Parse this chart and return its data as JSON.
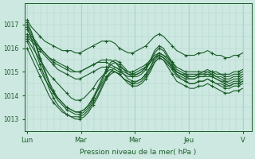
{
  "bg_color": "#cce8e0",
  "plot_bg_color": "#cce8e0",
  "line_color": "#1a5c28",
  "marker": "+",
  "xlabel": "Pression niveau de la mer( hPa )",
  "day_labels": [
    "Lun",
    "Mar",
    "Mer",
    "Jeu",
    "V"
  ],
  "day_positions": [
    0,
    24,
    48,
    72,
    96
  ],
  "ylim": [
    1012.5,
    1017.9
  ],
  "yticks": [
    1013,
    1014,
    1015,
    1016,
    1017
  ],
  "xlim": [
    -1,
    100
  ],
  "grid_color": "#b0d4cc",
  "series": [
    [
      1017.2,
      1016.9,
      1016.7,
      1016.5,
      1016.3,
      1016.2,
      1016.1,
      1016.0,
      1015.9,
      1015.9,
      1015.9,
      1015.8,
      1015.8,
      1015.9,
      1016.0,
      1016.1,
      1016.2,
      1016.3,
      1016.3,
      1016.3,
      1016.2,
      1016.0,
      1015.9,
      1015.8,
      1015.8,
      1015.9,
      1016.0,
      1016.1,
      1016.3,
      1016.5,
      1016.6,
      1016.5,
      1016.3,
      1016.1,
      1015.9,
      1015.8,
      1015.7,
      1015.7,
      1015.7,
      1015.8,
      1015.8,
      1015.9,
      1015.8,
      1015.7,
      1015.7,
      1015.6,
      1015.6,
      1015.7,
      1015.7,
      1015.8
    ],
    [
      1016.8,
      1016.5,
      1016.3,
      1016.0,
      1015.8,
      1015.6,
      1015.5,
      1015.4,
      1015.3,
      1015.2,
      1015.1,
      1015.0,
      1015.0,
      1015.1,
      1015.2,
      1015.3,
      1015.4,
      1015.5,
      1015.5,
      1015.5,
      1015.4,
      1015.2,
      1015.1,
      1015.0,
      1015.0,
      1015.1,
      1015.2,
      1015.3,
      1015.5,
      1015.7,
      1015.8,
      1015.7,
      1015.6,
      1015.4,
      1015.2,
      1015.1,
      1015.0,
      1015.0,
      1015.0,
      1015.0,
      1015.0,
      1015.1,
      1015.0,
      1015.0,
      1014.9,
      1014.9,
      1014.9,
      1015.0,
      1015.0,
      1015.1
    ],
    [
      1016.6,
      1016.4,
      1016.2,
      1016.0,
      1015.8,
      1015.6,
      1015.4,
      1015.3,
      1015.2,
      1015.1,
      1015.0,
      1015.0,
      1015.0,
      1015.1,
      1015.2,
      1015.3,
      1015.4,
      1015.4,
      1015.4,
      1015.3,
      1015.2,
      1015.1,
      1015.0,
      1014.9,
      1014.9,
      1015.0,
      1015.1,
      1015.2,
      1015.4,
      1015.6,
      1015.7,
      1015.6,
      1015.4,
      1015.2,
      1015.0,
      1014.9,
      1014.9,
      1014.9,
      1014.9,
      1014.9,
      1015.0,
      1015.0,
      1015.0,
      1014.9,
      1014.9,
      1014.8,
      1014.8,
      1014.9,
      1014.9,
      1015.0
    ],
    [
      1016.5,
      1016.3,
      1016.1,
      1015.9,
      1015.7,
      1015.5,
      1015.3,
      1015.1,
      1015.0,
      1014.9,
      1014.8,
      1014.7,
      1014.7,
      1014.8,
      1014.9,
      1015.0,
      1015.1,
      1015.2,
      1015.2,
      1015.2,
      1015.1,
      1015.0,
      1014.9,
      1014.8,
      1014.8,
      1014.9,
      1015.0,
      1015.2,
      1015.4,
      1015.6,
      1015.7,
      1015.6,
      1015.4,
      1015.2,
      1015.0,
      1014.9,
      1014.8,
      1014.8,
      1014.8,
      1014.9,
      1014.9,
      1014.9,
      1014.9,
      1014.8,
      1014.8,
      1014.7,
      1014.7,
      1014.8,
      1014.8,
      1014.9
    ],
    [
      1016.4,
      1016.1,
      1015.8,
      1015.5,
      1015.2,
      1014.9,
      1014.7,
      1014.5,
      1014.3,
      1014.1,
      1013.9,
      1013.8,
      1013.8,
      1013.9,
      1014.1,
      1014.3,
      1014.6,
      1014.8,
      1015.0,
      1015.1,
      1015.0,
      1014.9,
      1014.7,
      1014.6,
      1014.5,
      1014.6,
      1014.7,
      1014.9,
      1015.2,
      1015.5,
      1015.7,
      1015.6,
      1015.4,
      1015.2,
      1014.9,
      1014.8,
      1014.7,
      1014.7,
      1014.7,
      1014.8,
      1014.8,
      1014.8,
      1014.8,
      1014.7,
      1014.6,
      1014.6,
      1014.6,
      1014.7,
      1014.7,
      1014.8
    ],
    [
      1016.3,
      1015.9,
      1015.5,
      1015.1,
      1014.7,
      1014.4,
      1014.1,
      1013.9,
      1013.7,
      1013.5,
      1013.4,
      1013.3,
      1013.3,
      1013.4,
      1013.6,
      1013.9,
      1014.2,
      1014.5,
      1014.8,
      1015.0,
      1015.0,
      1014.9,
      1014.7,
      1014.6,
      1014.5,
      1014.5,
      1014.6,
      1014.8,
      1015.1,
      1015.4,
      1015.6,
      1015.5,
      1015.3,
      1015.1,
      1014.8,
      1014.7,
      1014.6,
      1014.5,
      1014.5,
      1014.6,
      1014.6,
      1014.7,
      1014.6,
      1014.5,
      1014.5,
      1014.4,
      1014.4,
      1014.5,
      1014.5,
      1014.6
    ],
    [
      1017.1,
      1016.7,
      1016.2,
      1015.6,
      1015.1,
      1014.6,
      1014.2,
      1013.9,
      1013.7,
      1013.5,
      1013.4,
      1013.3,
      1013.3,
      1013.4,
      1013.6,
      1013.9,
      1014.3,
      1014.7,
      1015.1,
      1015.4,
      1015.5,
      1015.4,
      1015.2,
      1015.0,
      1014.9,
      1014.9,
      1015.0,
      1015.2,
      1015.5,
      1015.9,
      1016.1,
      1016.0,
      1015.7,
      1015.4,
      1015.1,
      1015.0,
      1014.9,
      1014.8,
      1014.8,
      1014.9,
      1014.9,
      1015.0,
      1014.9,
      1014.8,
      1014.7,
      1014.6,
      1014.5,
      1014.6,
      1014.6,
      1014.7
    ],
    [
      1017.0,
      1016.6,
      1016.1,
      1015.5,
      1015.0,
      1014.5,
      1014.1,
      1013.8,
      1013.6,
      1013.4,
      1013.3,
      1013.2,
      1013.2,
      1013.3,
      1013.5,
      1013.8,
      1014.2,
      1014.6,
      1015.0,
      1015.3,
      1015.4,
      1015.3,
      1015.1,
      1014.9,
      1014.8,
      1014.8,
      1014.9,
      1015.1,
      1015.4,
      1015.8,
      1016.0,
      1015.9,
      1015.6,
      1015.3,
      1015.0,
      1014.9,
      1014.8,
      1014.7,
      1014.7,
      1014.8,
      1014.8,
      1014.9,
      1014.8,
      1014.7,
      1014.6,
      1014.5,
      1014.4,
      1014.5,
      1014.5,
      1014.6
    ],
    [
      1016.9,
      1016.4,
      1015.8,
      1015.3,
      1014.8,
      1014.3,
      1013.9,
      1013.6,
      1013.4,
      1013.2,
      1013.1,
      1013.0,
      1013.0,
      1013.1,
      1013.3,
      1013.6,
      1013.9,
      1014.3,
      1014.7,
      1015.0,
      1015.2,
      1015.1,
      1014.9,
      1014.7,
      1014.6,
      1014.6,
      1014.7,
      1014.9,
      1015.2,
      1015.6,
      1015.8,
      1015.7,
      1015.5,
      1015.2,
      1014.9,
      1014.7,
      1014.6,
      1014.5,
      1014.5,
      1014.6,
      1014.6,
      1014.7,
      1014.6,
      1014.5,
      1014.4,
      1014.3,
      1014.3,
      1014.4,
      1014.4,
      1014.5
    ],
    [
      1016.0,
      1015.6,
      1015.2,
      1014.8,
      1014.4,
      1014.0,
      1013.7,
      1013.5,
      1013.3,
      1013.2,
      1013.1,
      1013.1,
      1013.1,
      1013.2,
      1013.4,
      1013.7,
      1014.0,
      1014.4,
      1014.7,
      1014.9,
      1015.0,
      1014.9,
      1014.7,
      1014.5,
      1014.4,
      1014.4,
      1014.5,
      1014.7,
      1015.0,
      1015.4,
      1015.6,
      1015.5,
      1015.2,
      1014.9,
      1014.6,
      1014.5,
      1014.4,
      1014.3,
      1014.3,
      1014.4,
      1014.4,
      1014.5,
      1014.4,
      1014.3,
      1014.2,
      1014.1,
      1014.1,
      1014.2,
      1014.2,
      1014.3
    ]
  ]
}
